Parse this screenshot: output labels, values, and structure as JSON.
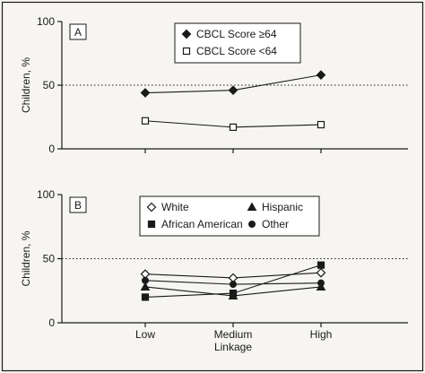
{
  "chart_data": [
    {
      "type": "line",
      "panel_label": "A",
      "ylabel": "Children, %",
      "xlabel": "",
      "categories": [
        "Low",
        "Medium",
        "High"
      ],
      "show_x_tick_labels": false,
      "yticks": [
        0,
        50,
        100
      ],
      "ylim": [
        0,
        100
      ],
      "reference_line": 50,
      "legend_placement": "top-center",
      "series": [
        {
          "name": "CBCL Score ≥64",
          "marker": "diamond",
          "values": [
            44,
            46,
            58
          ]
        },
        {
          "name": "CBCL Score <64",
          "marker": "open-square",
          "values": [
            22,
            17,
            19
          ]
        }
      ]
    },
    {
      "type": "line",
      "panel_label": "B",
      "ylabel": "Children, %",
      "xlabel": "Linkage",
      "categories": [
        "Low",
        "Medium",
        "High"
      ],
      "show_x_tick_labels": true,
      "yticks": [
        0,
        50,
        100
      ],
      "ylim": [
        0,
        100
      ],
      "reference_line": 50,
      "legend_placement": "top-center",
      "series": [
        {
          "name": "White",
          "marker": "open-diamond",
          "values": [
            38,
            35,
            39
          ]
        },
        {
          "name": "African American",
          "marker": "square",
          "values": [
            20,
            23,
            45
          ]
        },
        {
          "name": "Hispanic",
          "marker": "triangle",
          "values": [
            28,
            21,
            28
          ]
        },
        {
          "name": "Other",
          "marker": "circle",
          "values": [
            33,
            30,
            31
          ]
        }
      ]
    }
  ],
  "colors": {
    "ink": "#1a1a1a",
    "background": "#f6f5f2"
  }
}
